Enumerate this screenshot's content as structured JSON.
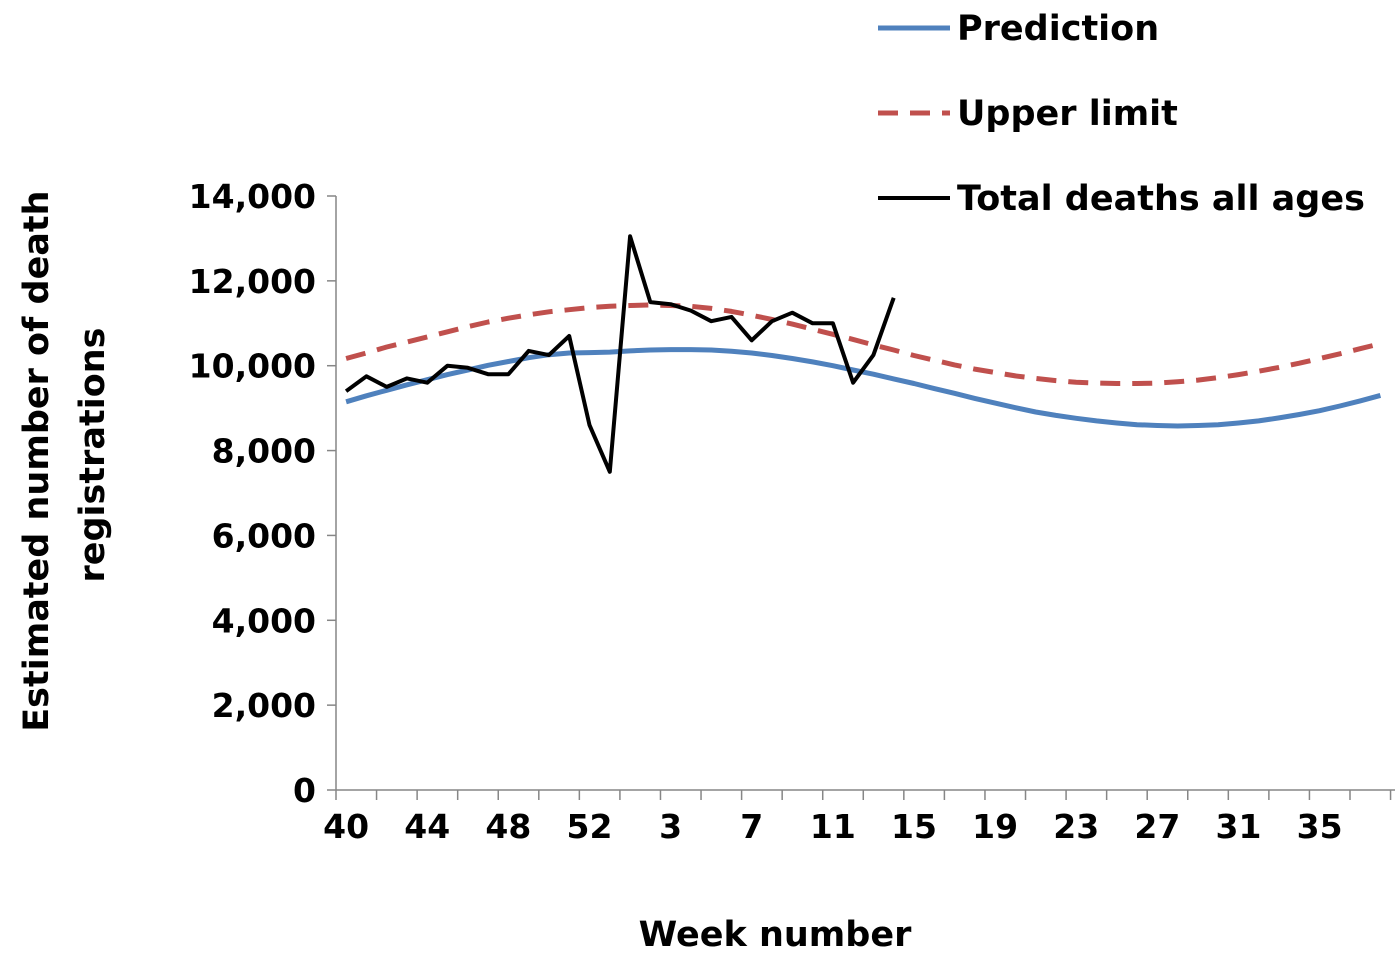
{
  "chart_data": {
    "type": "line",
    "xlabel": "Week number",
    "ylabel_lines": [
      "Estimated number of death",
      "registrations"
    ],
    "ylim": [
      0,
      14000
    ],
    "yticks": [
      0,
      2000,
      4000,
      6000,
      8000,
      10000,
      12000,
      14000
    ],
    "ytick_labels": [
      "0",
      "2,000",
      "4,000",
      "6,000",
      "8,000",
      "10,000",
      "12,000",
      "14,000"
    ],
    "x_weeks": [
      40,
      41,
      42,
      43,
      44,
      45,
      46,
      47,
      48,
      49,
      50,
      51,
      52,
      53,
      1,
      2,
      3,
      4,
      5,
      6,
      7,
      8,
      9,
      10,
      11,
      12,
      13,
      14,
      15,
      16,
      17,
      18,
      19,
      20,
      21,
      22,
      23,
      24,
      25,
      26,
      27,
      28,
      29,
      30,
      31,
      32,
      33,
      34,
      35,
      36,
      37,
      38
    ],
    "xtick_labels": [
      "40",
      "44",
      "48",
      "52",
      "3",
      "7",
      "11",
      "15",
      "19",
      "23",
      "27",
      "31",
      "35"
    ],
    "legend_position": "top-right",
    "grid": false,
    "series": [
      {
        "name": "Prediction",
        "color": "#4f81bd",
        "style": "solid",
        "values": [
          9150,
          9290,
          9420,
          9550,
          9670,
          9790,
          9900,
          10010,
          10100,
          10190,
          10260,
          10300,
          10310,
          10320,
          10350,
          10370,
          10380,
          10380,
          10370,
          10340,
          10300,
          10240,
          10170,
          10090,
          10000,
          9900,
          9800,
          9690,
          9580,
          9460,
          9350,
          9230,
          9120,
          9010,
          8910,
          8830,
          8760,
          8700,
          8650,
          8610,
          8590,
          8580,
          8590,
          8610,
          8650,
          8700,
          8770,
          8850,
          8940,
          9050,
          9170,
          9300
        ]
      },
      {
        "name": "Upper limit",
        "color": "#c0504d",
        "style": "dashed",
        "values": [
          10170,
          10300,
          10440,
          10560,
          10680,
          10800,
          10920,
          11030,
          11120,
          11200,
          11270,
          11320,
          11370,
          11400,
          11420,
          11430,
          11420,
          11400,
          11350,
          11280,
          11190,
          11090,
          10980,
          10860,
          10740,
          10620,
          10490,
          10370,
          10240,
          10130,
          10020,
          9920,
          9840,
          9760,
          9700,
          9650,
          9610,
          9590,
          9580,
          9580,
          9590,
          9620,
          9660,
          9720,
          9790,
          9870,
          9960,
          10060,
          10170,
          10280,
          10400,
          10520
        ]
      },
      {
        "name": "Total deaths all ages",
        "color": "#000000",
        "style": "solid",
        "values": [
          9400,
          9750,
          9500,
          9700,
          9600,
          10000,
          9950,
          9800,
          9800,
          10350,
          10250,
          10700,
          8600,
          7500,
          13050,
          11500,
          11450,
          11300,
          11050,
          11150,
          10600,
          11050,
          11250,
          11000,
          11000,
          9600,
          10250,
          11600
        ]
      }
    ]
  }
}
